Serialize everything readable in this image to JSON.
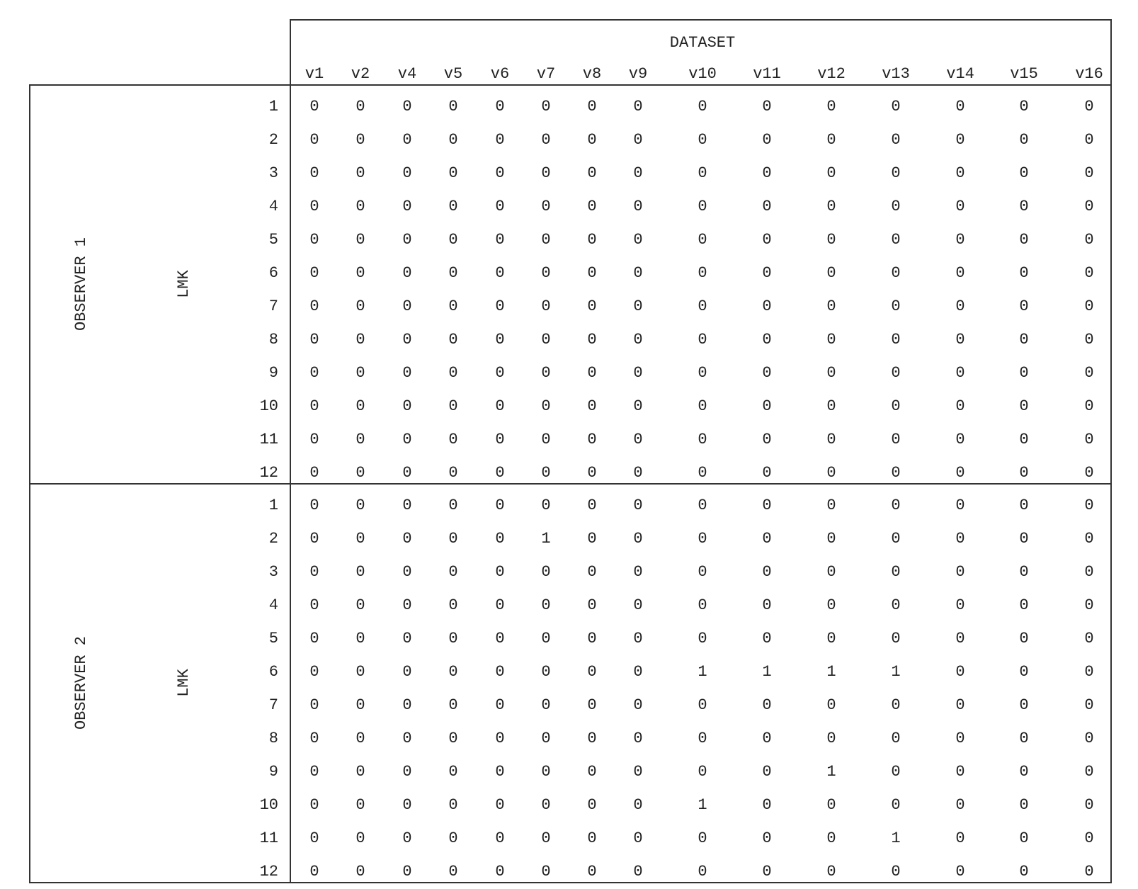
{
  "chart_data": {
    "type": "table",
    "header_title": "DATASET",
    "columns": [
      "v1",
      "v2",
      "v4",
      "v5",
      "v6",
      "v7",
      "v8",
      "v9",
      "v10",
      "v11",
      "v12",
      "v13",
      "v14",
      "v15",
      "v16"
    ],
    "groups": [
      {
        "name": "OBSERVER 1",
        "sublabel": "LMK",
        "row_labels": [
          "1",
          "2",
          "3",
          "4",
          "5",
          "6",
          "7",
          "8",
          "9",
          "10",
          "11",
          "12"
        ],
        "rows": [
          [
            0,
            0,
            0,
            0,
            0,
            0,
            0,
            0,
            0,
            0,
            0,
            0,
            0,
            0,
            0
          ],
          [
            0,
            0,
            0,
            0,
            0,
            0,
            0,
            0,
            0,
            0,
            0,
            0,
            0,
            0,
            0
          ],
          [
            0,
            0,
            0,
            0,
            0,
            0,
            0,
            0,
            0,
            0,
            0,
            0,
            0,
            0,
            0
          ],
          [
            0,
            0,
            0,
            0,
            0,
            0,
            0,
            0,
            0,
            0,
            0,
            0,
            0,
            0,
            0
          ],
          [
            0,
            0,
            0,
            0,
            0,
            0,
            0,
            0,
            0,
            0,
            0,
            0,
            0,
            0,
            0
          ],
          [
            0,
            0,
            0,
            0,
            0,
            0,
            0,
            0,
            0,
            0,
            0,
            0,
            0,
            0,
            0
          ],
          [
            0,
            0,
            0,
            0,
            0,
            0,
            0,
            0,
            0,
            0,
            0,
            0,
            0,
            0,
            0
          ],
          [
            0,
            0,
            0,
            0,
            0,
            0,
            0,
            0,
            0,
            0,
            0,
            0,
            0,
            0,
            0
          ],
          [
            0,
            0,
            0,
            0,
            0,
            0,
            0,
            0,
            0,
            0,
            0,
            0,
            0,
            0,
            0
          ],
          [
            0,
            0,
            0,
            0,
            0,
            0,
            0,
            0,
            0,
            0,
            0,
            0,
            0,
            0,
            0
          ],
          [
            0,
            0,
            0,
            0,
            0,
            0,
            0,
            0,
            0,
            0,
            0,
            0,
            0,
            0,
            0
          ],
          [
            0,
            0,
            0,
            0,
            0,
            0,
            0,
            0,
            0,
            0,
            0,
            0,
            0,
            0,
            0
          ]
        ]
      },
      {
        "name": "OBSERVER 2",
        "sublabel": "LMK",
        "row_labels": [
          "1",
          "2",
          "3",
          "4",
          "5",
          "6",
          "7",
          "8",
          "9",
          "10",
          "11",
          "12"
        ],
        "rows": [
          [
            0,
            0,
            0,
            0,
            0,
            0,
            0,
            0,
            0,
            0,
            0,
            0,
            0,
            0,
            0
          ],
          [
            0,
            0,
            0,
            0,
            0,
            1,
            0,
            0,
            0,
            0,
            0,
            0,
            0,
            0,
            0
          ],
          [
            0,
            0,
            0,
            0,
            0,
            0,
            0,
            0,
            0,
            0,
            0,
            0,
            0,
            0,
            0
          ],
          [
            0,
            0,
            0,
            0,
            0,
            0,
            0,
            0,
            0,
            0,
            0,
            0,
            0,
            0,
            0
          ],
          [
            0,
            0,
            0,
            0,
            0,
            0,
            0,
            0,
            0,
            0,
            0,
            0,
            0,
            0,
            0
          ],
          [
            0,
            0,
            0,
            0,
            0,
            0,
            0,
            0,
            1,
            1,
            1,
            1,
            0,
            0,
            0
          ],
          [
            0,
            0,
            0,
            0,
            0,
            0,
            0,
            0,
            0,
            0,
            0,
            0,
            0,
            0,
            0
          ],
          [
            0,
            0,
            0,
            0,
            0,
            0,
            0,
            0,
            0,
            0,
            0,
            0,
            0,
            0,
            0
          ],
          [
            0,
            0,
            0,
            0,
            0,
            0,
            0,
            0,
            0,
            0,
            1,
            0,
            0,
            0,
            0
          ],
          [
            0,
            0,
            0,
            0,
            0,
            0,
            0,
            0,
            1,
            0,
            0,
            0,
            0,
            0,
            0
          ],
          [
            0,
            0,
            0,
            0,
            0,
            0,
            0,
            0,
            0,
            0,
            0,
            1,
            0,
            0,
            0
          ],
          [
            0,
            0,
            0,
            0,
            0,
            0,
            0,
            0,
            0,
            0,
            0,
            0,
            0,
            0,
            0
          ]
        ]
      }
    ]
  }
}
